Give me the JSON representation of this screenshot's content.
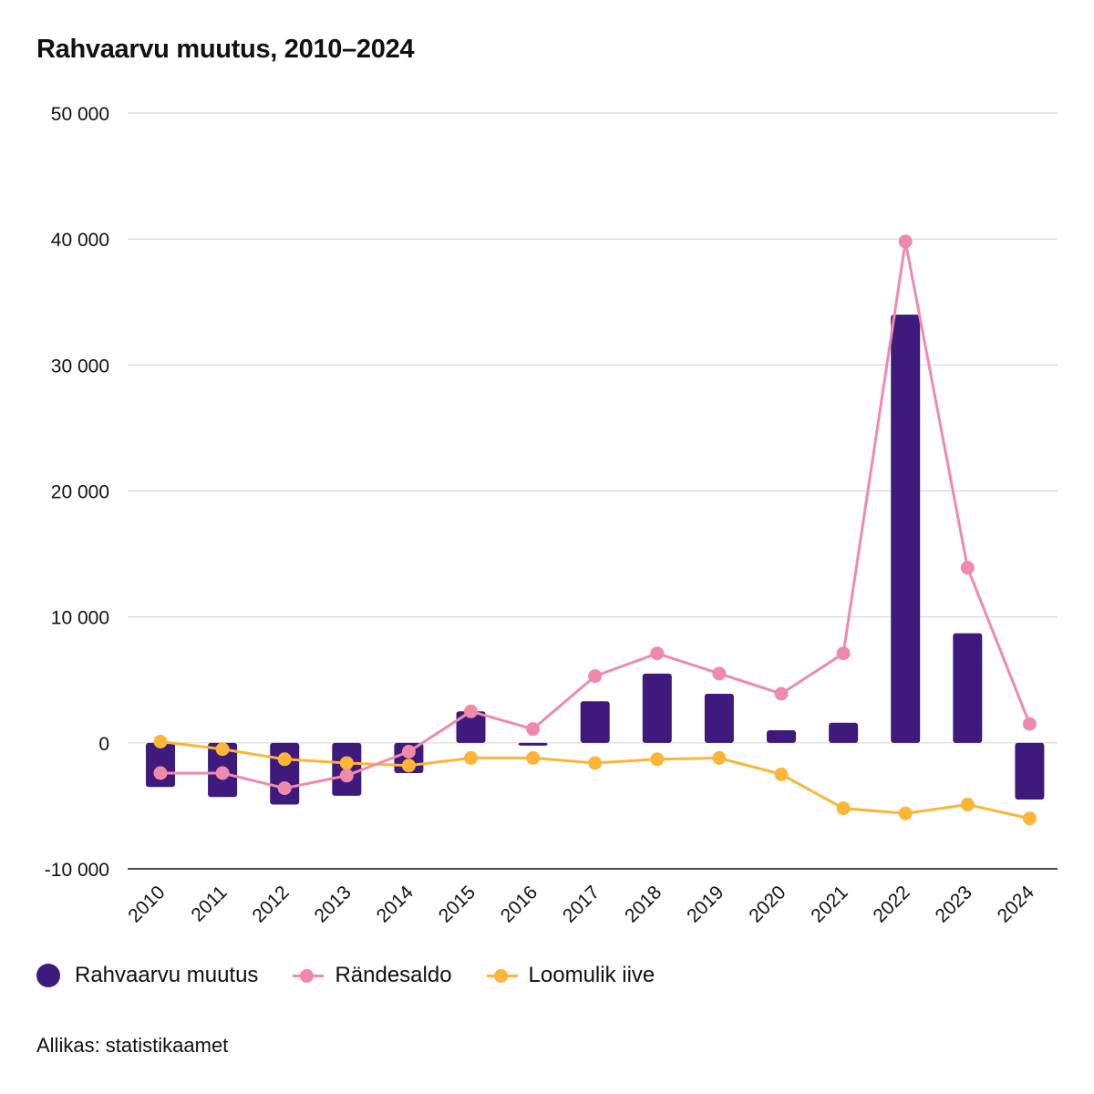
{
  "chart_data": {
    "type": "bar",
    "title": "Rahvaarvu muutus, 2010–2024",
    "xlabel": "",
    "ylabel": "",
    "ylim": [
      -10000,
      50000
    ],
    "yticks": [
      50000,
      40000,
      30000,
      20000,
      10000,
      0,
      -10000
    ],
    "ytick_labels": [
      "50 000",
      "40 000",
      "30 000",
      "20 000",
      "10 000",
      "0",
      "-10 000"
    ],
    "categories": [
      "2010",
      "2011",
      "2012",
      "2013",
      "2014",
      "2015",
      "2016",
      "2017",
      "2018",
      "2019",
      "2020",
      "2021",
      "2022",
      "2023",
      "2024"
    ],
    "series": [
      {
        "name": "Rahvaarvu muutus",
        "kind": "bar",
        "color": "#3e1a7d",
        "values": [
          -3500,
          -4300,
          -4900,
          -4200,
          -2400,
          2500,
          -200,
          3300,
          5500,
          3900,
          1000,
          1600,
          34000,
          8700,
          -4500
        ]
      },
      {
        "name": "Rändesaldo",
        "kind": "line",
        "color": "#f08aab",
        "values": [
          -2400,
          -2400,
          -3600,
          -2600,
          -700,
          2500,
          1100,
          5300,
          7100,
          5500,
          3900,
          7100,
          39800,
          13900,
          1500
        ]
      },
      {
        "name": "Loomulik iive",
        "kind": "line",
        "color": "#fbb638",
        "values": [
          100,
          -500,
          -1300,
          -1600,
          -1800,
          -1200,
          -1200,
          -1600,
          -1300,
          -1200,
          -2500,
          -5200,
          -5600,
          -4900,
          -6000
        ]
      }
    ]
  },
  "source": "Allikas: statistikaamet"
}
